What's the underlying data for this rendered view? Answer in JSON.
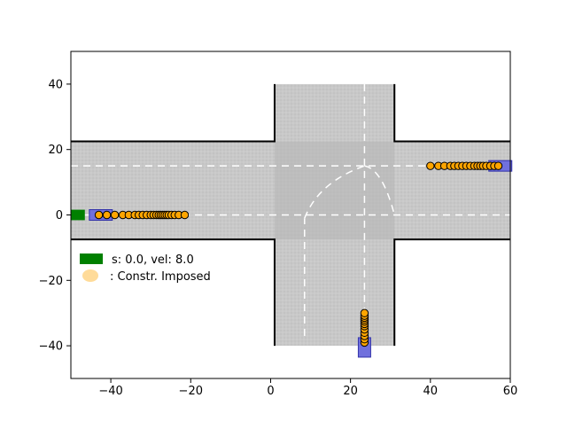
{
  "chart_data": {
    "type": "scatter",
    "title": "",
    "xlabel": "",
    "ylabel": "",
    "xlim": [
      -50,
      60
    ],
    "ylim": [
      -50,
      50
    ],
    "grid": false,
    "x_ticks": [
      -40,
      -20,
      0,
      20,
      40,
      60
    ],
    "y_ticks": [
      -40,
      -20,
      0,
      20,
      40
    ],
    "x_tick_labels": [
      "−40",
      "−20",
      "0",
      "20",
      "40",
      "60"
    ],
    "y_tick_labels": [
      "−40",
      "−20",
      "0",
      "20",
      "40"
    ],
    "legend": {
      "placement": "left",
      "entries": [
        {
          "label": "s: 0.0, vel: 8.0",
          "color": "#008000",
          "marker": "rectangle"
        },
        {
          "label": ": Constr. Imposed",
          "color": "#ffd27f",
          "marker": "ellipse"
        }
      ]
    },
    "road": {
      "horizontal_x": [
        -50,
        60
      ],
      "horizontal_y": [
        -7.5,
        22.5
      ],
      "vertical_x": [
        1,
        31
      ],
      "vertical_y": [
        -40,
        40
      ],
      "road_color": "#c8c8c8",
      "intersection_color": "#b4b4b4",
      "edge_color": "#000000",
      "lane_line_color": "#ffffff",
      "horizontal_lane_y": [
        0,
        15
      ],
      "vertical_lane_x": [
        8.5,
        23.5
      ]
    },
    "ego_vehicle": {
      "x": -48,
      "y": 0,
      "color": "#008000"
    },
    "vehicles": [
      {
        "x": -42.5,
        "y": 0,
        "color": "#7070dd"
      },
      {
        "x": 57.5,
        "y": 15,
        "color": "#7070dd"
      },
      {
        "x": 23.5,
        "y": -40.5,
        "color": "#7070dd"
      }
    ],
    "series": [
      {
        "marker_color": "#ffa500",
        "points_x": [
          -43,
          -41,
          -39,
          -37,
          -35.5,
          -34,
          -33,
          -32,
          -31,
          -30,
          -29.3,
          -28.6,
          -28,
          -27.5,
          -27,
          -26.5,
          -26,
          -25.5,
          -24.8,
          -24,
          -23,
          -21.5
        ],
        "points_y": [
          0,
          0,
          0,
          0,
          0,
          0,
          0,
          0,
          0,
          0,
          0,
          0,
          0,
          0,
          0,
          0,
          0,
          0,
          0,
          0,
          0,
          0
        ]
      },
      {
        "marker_color": "#ffa500",
        "points_x": [
          40,
          42,
          43.5,
          45,
          46,
          47,
          48,
          49,
          50,
          51,
          51.8,
          52.5,
          53.2,
          54,
          55,
          56,
          57
        ],
        "points_y": [
          15,
          15,
          15,
          15,
          15,
          15,
          15,
          15,
          15,
          15,
          15,
          15,
          15,
          15,
          15,
          15,
          15
        ]
      },
      {
        "marker_color": "#ffa500",
        "points_x": [
          23.5,
          23.5,
          23.5,
          23.5,
          23.5,
          23.5,
          23.5,
          23.5,
          23.5,
          23.5,
          23.5,
          23.5
        ],
        "points_y": [
          -39,
          -38,
          -37,
          -36,
          -35,
          -34,
          -33.3,
          -32.6,
          -32,
          -31.4,
          -30.8,
          -30
        ]
      }
    ]
  }
}
